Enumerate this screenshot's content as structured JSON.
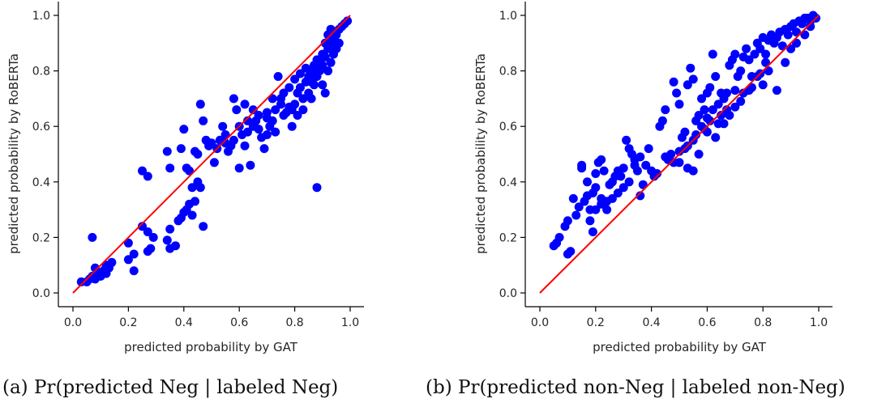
{
  "colors": {
    "points": "#0000ff",
    "diagonal": "#ff0000",
    "spine": "#000000"
  },
  "chart_data": [
    {
      "type": "scatter",
      "caption": "(a) Pr(predicted Neg | labeled Neg)",
      "xlabel": "predicted probability by GAT",
      "ylabel": "predicted probability by RoBERTa",
      "xlim": [
        -0.05,
        1.05
      ],
      "ylim": [
        -0.05,
        1.05
      ],
      "xticks": [
        "0.0",
        "0.2",
        "0.4",
        "0.6",
        "0.8",
        "1.0"
      ],
      "yticks": [
        "0.0",
        "0.2",
        "0.4",
        "0.6",
        "0.8",
        "1.0"
      ],
      "reference_line": {
        "x": [
          0,
          1
        ],
        "y": [
          0,
          1
        ]
      },
      "points": [
        [
          0.03,
          0.04
        ],
        [
          0.05,
          0.04
        ],
        [
          0.06,
          0.05
        ],
        [
          0.07,
          0.06
        ],
        [
          0.08,
          0.05
        ],
        [
          0.09,
          0.07
        ],
        [
          0.1,
          0.06
        ],
        [
          0.11,
          0.08
        ],
        [
          0.12,
          0.07
        ],
        [
          0.13,
          0.09
        ],
        [
          0.07,
          0.2
        ],
        [
          0.08,
          0.09
        ],
        [
          0.12,
          0.1
        ],
        [
          0.14,
          0.11
        ],
        [
          0.2,
          0.12
        ],
        [
          0.2,
          0.18
        ],
        [
          0.22,
          0.14
        ],
        [
          0.22,
          0.08
        ],
        [
          0.25,
          0.24
        ],
        [
          0.27,
          0.22
        ],
        [
          0.27,
          0.15
        ],
        [
          0.28,
          0.16
        ],
        [
          0.29,
          0.2
        ],
        [
          0.25,
          0.44
        ],
        [
          0.27,
          0.42
        ],
        [
          0.34,
          0.51
        ],
        [
          0.35,
          0.45
        ],
        [
          0.34,
          0.19
        ],
        [
          0.35,
          0.23
        ],
        [
          0.35,
          0.16
        ],
        [
          0.37,
          0.17
        ],
        [
          0.38,
          0.26
        ],
        [
          0.39,
          0.27
        ],
        [
          0.4,
          0.29
        ],
        [
          0.41,
          0.3
        ],
        [
          0.42,
          0.32
        ],
        [
          0.43,
          0.28
        ],
        [
          0.44,
          0.33
        ],
        [
          0.45,
          0.4
        ],
        [
          0.46,
          0.38
        ],
        [
          0.47,
          0.24
        ],
        [
          0.39,
          0.52
        ],
        [
          0.4,
          0.59
        ],
        [
          0.41,
          0.45
        ],
        [
          0.42,
          0.44
        ],
        [
          0.43,
          0.38
        ],
        [
          0.44,
          0.51
        ],
        [
          0.45,
          0.5
        ],
        [
          0.46,
          0.68
        ],
        [
          0.47,
          0.62
        ],
        [
          0.48,
          0.55
        ],
        [
          0.49,
          0.53
        ],
        [
          0.5,
          0.54
        ],
        [
          0.51,
          0.47
        ],
        [
          0.52,
          0.52
        ],
        [
          0.53,
          0.55
        ],
        [
          0.54,
          0.6
        ],
        [
          0.55,
          0.54
        ],
        [
          0.56,
          0.51
        ],
        [
          0.57,
          0.53
        ],
        [
          0.58,
          0.55
        ],
        [
          0.58,
          0.7
        ],
        [
          0.59,
          0.66
        ],
        [
          0.6,
          0.45
        ],
        [
          0.61,
          0.57
        ],
        [
          0.62,
          0.53
        ],
        [
          0.63,
          0.58
        ],
        [
          0.64,
          0.46
        ],
        [
          0.65,
          0.6
        ],
        [
          0.66,
          0.62
        ],
        [
          0.67,
          0.64
        ],
        [
          0.68,
          0.56
        ],
        [
          0.69,
          0.52
        ],
        [
          0.7,
          0.57
        ],
        [
          0.71,
          0.6
        ],
        [
          0.72,
          0.62
        ],
        [
          0.73,
          0.66
        ],
        [
          0.74,
          0.78
        ],
        [
          0.75,
          0.7
        ],
        [
          0.76,
          0.72
        ],
        [
          0.77,
          0.65
        ],
        [
          0.78,
          0.67
        ],
        [
          0.79,
          0.6
        ],
        [
          0.8,
          0.68
        ],
        [
          0.81,
          0.72
        ],
        [
          0.82,
          0.74
        ],
        [
          0.83,
          0.7
        ],
        [
          0.84,
          0.76
        ],
        [
          0.85,
          0.78
        ],
        [
          0.86,
          0.8
        ],
        [
          0.87,
          0.82
        ],
        [
          0.88,
          0.84
        ],
        [
          0.89,
          0.8
        ],
        [
          0.9,
          0.86
        ],
        [
          0.91,
          0.85
        ],
        [
          0.92,
          0.88
        ],
        [
          0.93,
          0.9
        ],
        [
          0.94,
          0.92
        ],
        [
          0.95,
          0.93
        ],
        [
          0.96,
          0.95
        ],
        [
          0.97,
          0.96
        ],
        [
          0.98,
          0.97
        ],
        [
          0.99,
          0.98
        ],
        [
          0.88,
          0.38
        ],
        [
          0.9,
          0.75
        ],
        [
          0.91,
          0.72
        ],
        [
          0.92,
          0.8
        ],
        [
          0.93,
          0.83
        ],
        [
          0.94,
          0.86
        ],
        [
          0.95,
          0.88
        ],
        [
          0.96,
          0.9
        ],
        [
          0.85,
          0.72
        ],
        [
          0.86,
          0.7
        ],
        [
          0.87,
          0.75
        ],
        [
          0.88,
          0.78
        ],
        [
          0.89,
          0.83
        ],
        [
          0.9,
          0.82
        ],
        [
          0.91,
          0.9
        ],
        [
          0.92,
          0.93
        ],
        [
          0.93,
          0.95
        ],
        [
          0.62,
          0.68
        ],
        [
          0.65,
          0.66
        ],
        [
          0.7,
          0.65
        ],
        [
          0.72,
          0.7
        ],
        [
          0.75,
          0.68
        ],
        [
          0.78,
          0.74
        ],
        [
          0.8,
          0.77
        ],
        [
          0.82,
          0.79
        ],
        [
          0.84,
          0.81
        ],
        [
          0.86,
          0.76
        ],
        [
          0.55,
          0.57
        ],
        [
          0.6,
          0.6
        ],
        [
          0.63,
          0.62
        ],
        [
          0.67,
          0.59
        ],
        [
          0.7,
          0.63
        ],
        [
          0.73,
          0.58
        ],
        [
          0.76,
          0.64
        ],
        [
          0.79,
          0.66
        ],
        [
          0.81,
          0.64
        ],
        [
          0.83,
          0.66
        ]
      ]
    },
    {
      "type": "scatter",
      "caption": "(b) Pr(predicted non-Neg | labeled non-Neg)",
      "xlabel": "predicted probability by GAT",
      "ylabel": "predicted probability by RoBERTa",
      "xlim": [
        -0.05,
        1.05
      ],
      "ylim": [
        -0.05,
        1.05
      ],
      "xticks": [
        "0.0",
        "0.2",
        "0.4",
        "0.6",
        "0.8",
        "1.0"
      ],
      "yticks": [
        "0.0",
        "0.2",
        "0.4",
        "0.6",
        "0.8",
        "1.0"
      ],
      "reference_line": {
        "x": [
          0,
          1
        ],
        "y": [
          0,
          1
        ]
      },
      "points": [
        [
          0.05,
          0.17
        ],
        [
          0.06,
          0.18
        ],
        [
          0.07,
          0.2
        ],
        [
          0.09,
          0.24
        ],
        [
          0.1,
          0.26
        ],
        [
          0.1,
          0.14
        ],
        [
          0.11,
          0.15
        ],
        [
          0.12,
          0.34
        ],
        [
          0.13,
          0.28
        ],
        [
          0.14,
          0.31
        ],
        [
          0.15,
          0.45
        ],
        [
          0.15,
          0.46
        ],
        [
          0.16,
          0.33
        ],
        [
          0.17,
          0.35
        ],
        [
          0.17,
          0.4
        ],
        [
          0.18,
          0.3
        ],
        [
          0.18,
          0.26
        ],
        [
          0.19,
          0.36
        ],
        [
          0.2,
          0.38
        ],
        [
          0.2,
          0.43
        ],
        [
          0.21,
          0.47
        ],
        [
          0.22,
          0.48
        ],
        [
          0.22,
          0.34
        ],
        [
          0.23,
          0.44
        ],
        [
          0.24,
          0.3
        ],
        [
          0.25,
          0.39
        ],
        [
          0.26,
          0.4
        ],
        [
          0.27,
          0.42
        ],
        [
          0.28,
          0.44
        ],
        [
          0.29,
          0.42
        ],
        [
          0.3,
          0.45
        ],
        [
          0.31,
          0.55
        ],
        [
          0.32,
          0.52
        ],
        [
          0.33,
          0.5
        ],
        [
          0.34,
          0.48
        ],
        [
          0.35,
          0.44
        ],
        [
          0.36,
          0.35
        ],
        [
          0.37,
          0.39
        ],
        [
          0.38,
          0.46
        ],
        [
          0.39,
          0.52
        ],
        [
          0.4,
          0.44
        ],
        [
          0.41,
          0.42
        ],
        [
          0.42,
          0.43
        ],
        [
          0.43,
          0.6
        ],
        [
          0.44,
          0.62
        ],
        [
          0.45,
          0.66
        ],
        [
          0.46,
          0.48
        ],
        [
          0.47,
          0.5
        ],
        [
          0.48,
          0.76
        ],
        [
          0.49,
          0.72
        ],
        [
          0.5,
          0.68
        ],
        [
          0.51,
          0.56
        ],
        [
          0.52,
          0.58
        ],
        [
          0.53,
          0.75
        ],
        [
          0.54,
          0.81
        ],
        [
          0.55,
          0.77
        ],
        [
          0.56,
          0.62
        ],
        [
          0.57,
          0.64
        ],
        [
          0.58,
          0.7
        ],
        [
          0.59,
          0.66
        ],
        [
          0.6,
          0.72
        ],
        [
          0.61,
          0.74
        ],
        [
          0.62,
          0.86
        ],
        [
          0.63,
          0.78
        ],
        [
          0.64,
          0.68
        ],
        [
          0.65,
          0.72
        ],
        [
          0.66,
          0.7
        ],
        [
          0.67,
          0.66
        ],
        [
          0.68,
          0.82
        ],
        [
          0.69,
          0.84
        ],
        [
          0.7,
          0.86
        ],
        [
          0.71,
          0.78
        ],
        [
          0.72,
          0.8
        ],
        [
          0.73,
          0.85
        ],
        [
          0.74,
          0.88
        ],
        [
          0.75,
          0.84
        ],
        [
          0.76,
          0.78
        ],
        [
          0.77,
          0.86
        ],
        [
          0.78,
          0.9
        ],
        [
          0.79,
          0.88
        ],
        [
          0.8,
          0.92
        ],
        [
          0.81,
          0.86
        ],
        [
          0.82,
          0.91
        ],
        [
          0.83,
          0.93
        ],
        [
          0.84,
          0.9
        ],
        [
          0.85,
          0.92
        ],
        [
          0.86,
          0.94
        ],
        [
          0.87,
          0.89
        ],
        [
          0.88,
          0.95
        ],
        [
          0.89,
          0.93
        ],
        [
          0.9,
          0.96
        ],
        [
          0.91,
          0.97
        ],
        [
          0.92,
          0.94
        ],
        [
          0.93,
          0.98
        ],
        [
          0.94,
          0.97
        ],
        [
          0.95,
          0.99
        ],
        [
          0.96,
          0.99
        ],
        [
          0.97,
          0.98
        ],
        [
          0.98,
          1.0
        ],
        [
          0.99,
          0.99
        ],
        [
          0.5,
          0.47
        ],
        [
          0.52,
          0.52
        ],
        [
          0.55,
          0.55
        ],
        [
          0.58,
          0.6
        ],
        [
          0.6,
          0.58
        ],
        [
          0.62,
          0.66
        ],
        [
          0.65,
          0.64
        ],
        [
          0.67,
          0.72
        ],
        [
          0.7,
          0.73
        ],
        [
          0.72,
          0.69
        ],
        [
          0.75,
          0.73
        ],
        [
          0.78,
          0.78
        ],
        [
          0.8,
          0.75
        ],
        [
          0.82,
          0.8
        ],
        [
          0.85,
          0.73
        ],
        [
          0.88,
          0.83
        ],
        [
          0.9,
          0.88
        ],
        [
          0.92,
          0.9
        ],
        [
          0.95,
          0.93
        ],
        [
          0.97,
          0.96
        ],
        [
          0.45,
          0.49
        ],
        [
          0.48,
          0.47
        ],
        [
          0.5,
          0.51
        ],
        [
          0.53,
          0.45
        ],
        [
          0.55,
          0.44
        ],
        [
          0.57,
          0.5
        ],
        [
          0.6,
          0.63
        ],
        [
          0.63,
          0.56
        ],
        [
          0.66,
          0.61
        ],
        [
          0.68,
          0.64
        ],
        [
          0.36,
          0.49
        ],
        [
          0.34,
          0.46
        ],
        [
          0.32,
          0.4
        ],
        [
          0.3,
          0.38
        ],
        [
          0.28,
          0.36
        ],
        [
          0.26,
          0.34
        ],
        [
          0.24,
          0.33
        ],
        [
          0.22,
          0.32
        ],
        [
          0.2,
          0.3
        ],
        [
          0.19,
          0.22
        ],
        [
          0.53,
          0.53
        ],
        [
          0.56,
          0.57
        ],
        [
          0.59,
          0.59
        ],
        [
          0.61,
          0.62
        ],
        [
          0.64,
          0.61
        ],
        [
          0.7,
          0.67
        ],
        [
          0.73,
          0.72
        ],
        [
          0.76,
          0.74
        ],
        [
          0.79,
          0.79
        ],
        [
          0.81,
          0.83
        ]
      ]
    }
  ]
}
